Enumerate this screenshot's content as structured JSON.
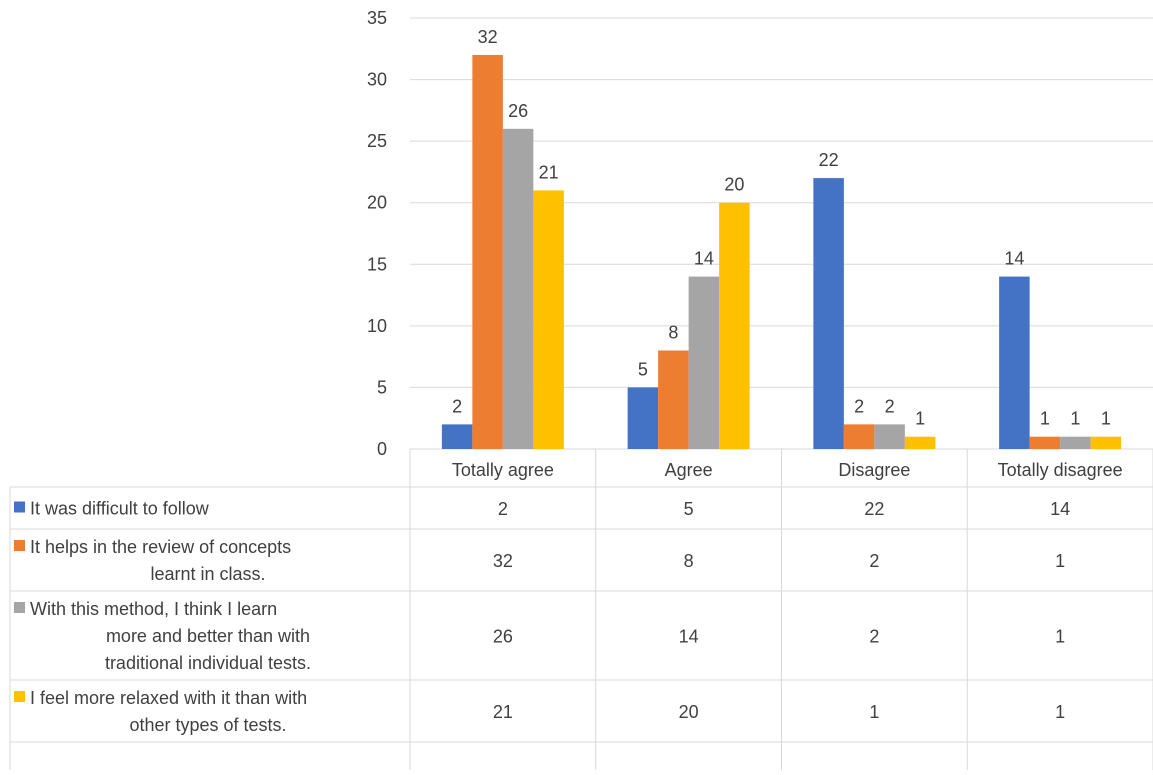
{
  "chart_data": {
    "type": "bar",
    "categories": [
      "Totally agree",
      "Agree",
      "Disagree",
      "Totally disagree"
    ],
    "series": [
      {
        "name": "It was difficult to follow",
        "values": [
          2,
          5,
          22,
          14
        ],
        "color": "#4472C4"
      },
      {
        "name": "It helps in the review of concepts learnt in class.",
        "values": [
          32,
          8,
          2,
          1
        ],
        "color": "#ED7D31"
      },
      {
        "name": "With this method, I think I learn more and better than with traditional individual tests.",
        "values": [
          26,
          14,
          2,
          1
        ],
        "color": "#A5A5A5"
      },
      {
        "name": "I feel more relaxed with it than with other types of tests.",
        "values": [
          21,
          20,
          1,
          1
        ],
        "color": "#FFC000"
      }
    ],
    "ylim": [
      0,
      35
    ],
    "yticks": [
      0,
      5,
      10,
      15,
      20,
      25,
      30,
      35
    ],
    "data_labels": true,
    "grid": true,
    "data_table": true,
    "legend_in_table": true
  }
}
